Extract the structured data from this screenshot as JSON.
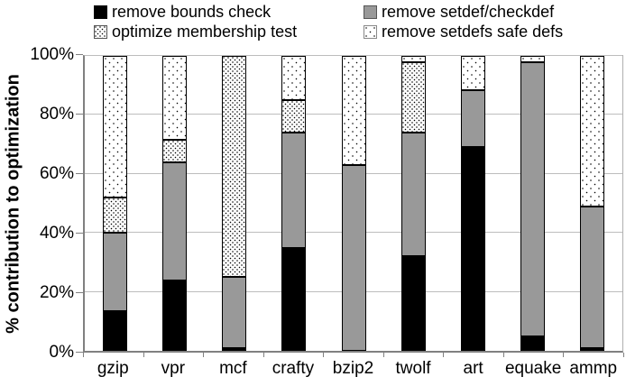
{
  "colors": {
    "black": "#000000",
    "gray": "#999999",
    "axis": "#808080",
    "gridline": "#bdbdbd",
    "background": "#ffffff"
  },
  "legend": {
    "items": [
      {
        "label": "remove bounds check",
        "swatch": "solid-black"
      },
      {
        "label": "remove setdef/checkdef",
        "swatch": "solid-gray"
      },
      {
        "label": "optimize membership test",
        "swatch": "dots-dense"
      },
      {
        "label": "remove setdefs safe defs",
        "swatch": "dots-sparse"
      }
    ]
  },
  "y_axis": {
    "title": "% contribution to optimization",
    "ticks": [
      {
        "label": "0%",
        "value": 0
      },
      {
        "label": "20%",
        "value": 20
      },
      {
        "label": "40%",
        "value": 40
      },
      {
        "label": "60%",
        "value": 60
      },
      {
        "label": "80%",
        "value": 80
      },
      {
        "label": "100%",
        "value": 100
      }
    ]
  },
  "chart_data": {
    "type": "bar",
    "stacked": true,
    "title": "",
    "xlabel": "",
    "ylabel": "% contribution to optimization",
    "ylim": [
      0,
      100
    ],
    "grid": "horizontal",
    "gridline_values": [
      20,
      40,
      60,
      80,
      100
    ],
    "legend_position": "top",
    "categories": [
      "gzip",
      "vpr",
      "mcf",
      "crafty",
      "bzip2",
      "twolf",
      "art",
      "equake",
      "ammp"
    ],
    "series": [
      {
        "name": "remove bounds check",
        "style": "solid-black",
        "values": [
          13.5,
          24,
          1,
          35,
          0,
          32,
          69,
          5,
          1
        ]
      },
      {
        "name": "remove setdef/checkdef",
        "style": "solid-gray",
        "values": [
          26.5,
          40,
          24,
          39,
          63,
          42,
          19.5,
          93,
          48
        ]
      },
      {
        "name": "optimize membership test",
        "style": "dots-dense",
        "values": [
          12,
          7.5,
          75,
          11,
          0,
          24,
          0,
          0,
          0
        ]
      },
      {
        "name": "remove setdefs safe defs",
        "style": "dots-sparse",
        "values": [
          48,
          28.5,
          0,
          15,
          37,
          2,
          11.5,
          2,
          51
        ]
      }
    ]
  }
}
